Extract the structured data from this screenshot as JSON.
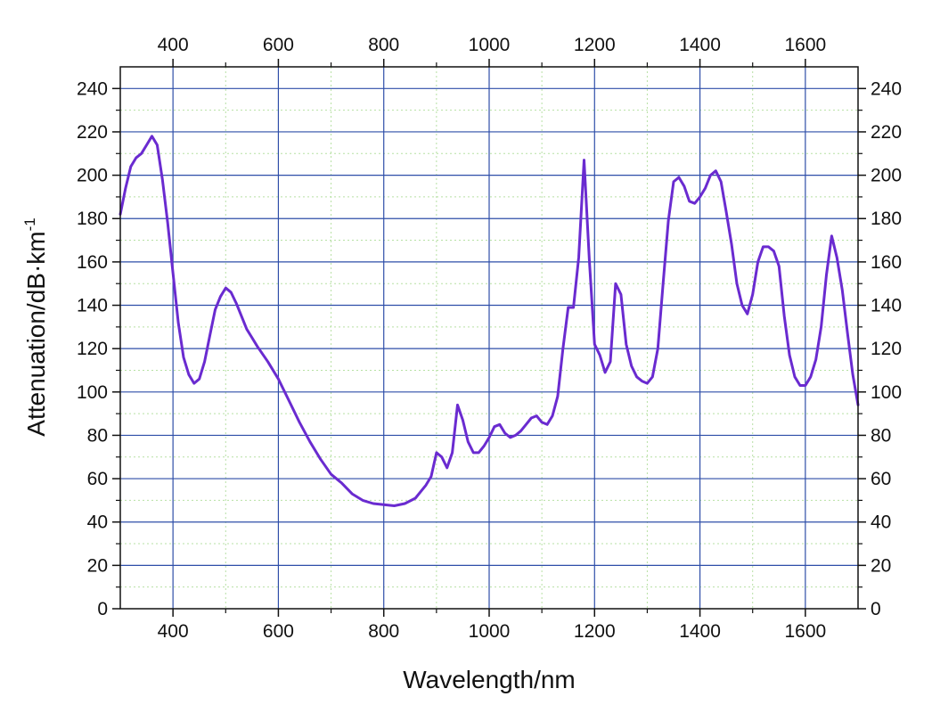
{
  "chart_data": {
    "type": "line",
    "title": "",
    "xlabel": "Wavelength/nm",
    "ylabel": "Attenuation/dB·km",
    "ylabel_exponent": "-1",
    "xlim": [
      300,
      1700
    ],
    "ylim": [
      0,
      250
    ],
    "x_ticks": [
      400,
      600,
      800,
      1000,
      1200,
      1400,
      1600
    ],
    "y_ticks": [
      0,
      20,
      40,
      60,
      80,
      100,
      120,
      140,
      160,
      180,
      200,
      220,
      240
    ],
    "x_tick_labels": [
      "400",
      "600",
      "800",
      "1000",
      "1200",
      "1400",
      "1600"
    ],
    "y_tick_labels": [
      "0",
      "20",
      "40",
      "60",
      "80",
      "100",
      "120",
      "140",
      "160",
      "180",
      "200",
      "220",
      "240"
    ],
    "x_minor_step": 100,
    "y_minor_step": 10,
    "grid": true,
    "colors": {
      "series": "#6a2bd0",
      "major_grid": "#2e4ea8",
      "minor_grid": "#b7e0a4",
      "frame": "#111111"
    },
    "series": [
      {
        "name": "Attenuation",
        "x": [
          300,
          310,
          320,
          330,
          340,
          350,
          360,
          370,
          380,
          390,
          400,
          410,
          420,
          430,
          440,
          450,
          460,
          470,
          480,
          490,
          500,
          510,
          520,
          530,
          540,
          550,
          560,
          580,
          600,
          620,
          640,
          660,
          680,
          700,
          720,
          740,
          760,
          780,
          800,
          820,
          840,
          860,
          870,
          880,
          890,
          900,
          910,
          920,
          930,
          940,
          950,
          960,
          970,
          980,
          990,
          1000,
          1010,
          1020,
          1030,
          1040,
          1050,
          1060,
          1070,
          1080,
          1090,
          1100,
          1110,
          1120,
          1130,
          1140,
          1150,
          1160,
          1170,
          1180,
          1190,
          1200,
          1210,
          1220,
          1230,
          1240,
          1250,
          1260,
          1270,
          1280,
          1290,
          1300,
          1310,
          1320,
          1330,
          1340,
          1350,
          1360,
          1370,
          1380,
          1390,
          1400,
          1410,
          1420,
          1430,
          1440,
          1450,
          1460,
          1470,
          1480,
          1490,
          1500,
          1510,
          1520,
          1530,
          1540,
          1550,
          1560,
          1570,
          1580,
          1590,
          1600,
          1610,
          1620,
          1630,
          1640,
          1650,
          1660,
          1670,
          1680,
          1690,
          1700
        ],
        "y": [
          182,
          194,
          204,
          208,
          210,
          214,
          218,
          214,
          198,
          178,
          155,
          132,
          116,
          108,
          104,
          106,
          114,
          126,
          138,
          144,
          148,
          146,
          141,
          135,
          129,
          125,
          121,
          114,
          106,
          96,
          86,
          77,
          69,
          62,
          58,
          53,
          50,
          48.5,
          48,
          47.5,
          48.5,
          51,
          54,
          57,
          61,
          72,
          70,
          65,
          72,
          94,
          87,
          77,
          72,
          72,
          75,
          79,
          84,
          85,
          81,
          79,
          80,
          82,
          85,
          88,
          89,
          86,
          85,
          89,
          98,
          120,
          139,
          139,
          162,
          207,
          161,
          122,
          117,
          109,
          114,
          150,
          145,
          122,
          112,
          107,
          105,
          104,
          107,
          120,
          150,
          179,
          197,
          199,
          195,
          188,
          187,
          190,
          194,
          200,
          202,
          197,
          183,
          168,
          150,
          140,
          136,
          145,
          160,
          167,
          167,
          165,
          158,
          135,
          117,
          107,
          103,
          103,
          107,
          115,
          130,
          154,
          172,
          162,
          147,
          127,
          108,
          94
        ]
      }
    ]
  }
}
